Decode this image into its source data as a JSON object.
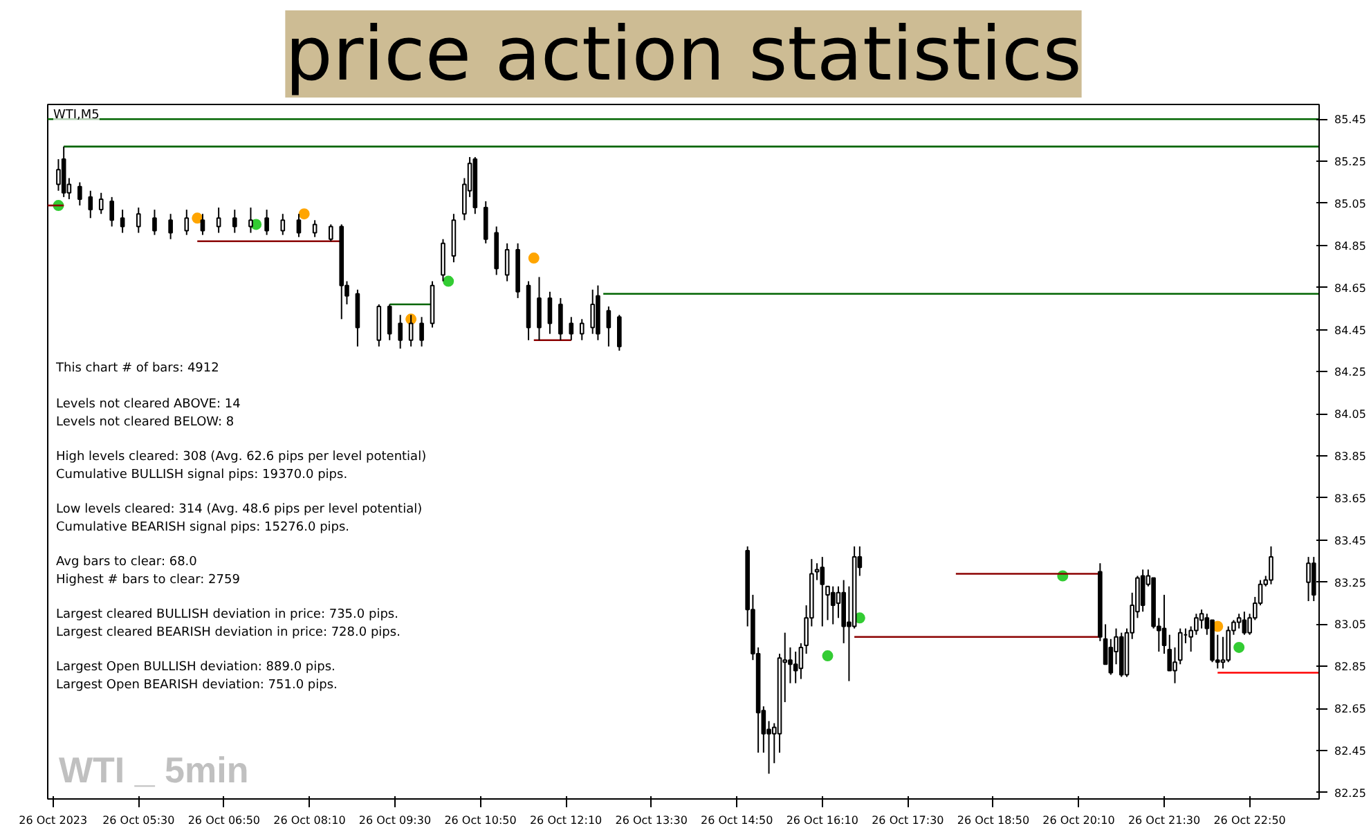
{
  "chart_data": {
    "type": "candlestick",
    "title": "price action statistics",
    "subtitle": "WTI,M5",
    "color": "#000000",
    "annotations": [
      "This chart # of bars: 4912",
      "Levels not cleared ABOVE: 14\nLevels not cleared BELOW: 8",
      "High levels cleared: 308   (Avg. 62.6 pips per level potential)\nCumulative BULLISH signal pips: 19370.0 pips.",
      "Low levels cleared: 314   (Avg. 48.6 pips per level potential)\nCumulative BEARISH signal pips: 15276.0 pips.",
      "Avg bars to clear: 68.0\nHighest # bars to clear: 2759",
      "Largest cleared BULLISH deviation in price: 735.0 pips.\nLargest cleared BEARISH deviation in price: 728.0 pips.",
      "Largest Open BULLISH deviation: 889.0 pips.\nLargest Open BEARISH deviation: 751.0 pips.",
      "WTI _ 5min"
    ],
    "xlim": [
      "2023-10-26T04:05",
      "2023-10-26T23:55"
    ],
    "ylim": [
      82.22,
      85.52
    ],
    "yticks": [
      85.45,
      85.25,
      85.05,
      84.85,
      84.65,
      84.45,
      84.25,
      84.05,
      83.85,
      83.65,
      83.45,
      83.25,
      83.05,
      82.85,
      82.65,
      82.45,
      82.25
    ],
    "xticks": [
      {
        "value": "2023-10-26T04:10",
        "label": "26 Oct 2023"
      },
      {
        "value": "2023-10-26T05:30",
        "label": "26 Oct 05:30"
      },
      {
        "value": "2023-10-26T06:50",
        "label": "26 Oct 06:50"
      },
      {
        "value": "2023-10-26T08:10",
        "label": "26 Oct 08:10"
      },
      {
        "value": "2023-10-26T09:30",
        "label": "26 Oct 09:30"
      },
      {
        "value": "2023-10-26T10:50",
        "label": "26 Oct 10:50"
      },
      {
        "value": "2023-10-26T12:10",
        "label": "26 Oct 12:10"
      },
      {
        "value": "2023-10-26T13:30",
        "label": "26 Oct 13:30"
      },
      {
        "value": "2023-10-26T14:50",
        "label": "26 Oct 14:50"
      },
      {
        "value": "2023-10-26T16:10",
        "label": "26 Oct 16:10"
      },
      {
        "value": "2023-10-26T17:30",
        "label": "26 Oct 17:30"
      },
      {
        "value": "2023-10-26T18:50",
        "label": "26 Oct 18:50"
      },
      {
        "value": "2023-10-26T20:10",
        "label": "26 Oct 20:10"
      },
      {
        "value": "2023-10-26T21:30",
        "label": "26 Oct 21:30"
      },
      {
        "value": "2023-10-26T22:50",
        "label": "26 Oct 22:50"
      }
    ],
    "x": [
      "2023-10-26T04:15",
      "2023-10-26T04:20",
      "2023-10-26T04:25",
      "2023-10-26T04:35",
      "2023-10-26T04:45",
      "2023-10-26T04:55",
      "2023-10-26T05:05",
      "2023-10-26T05:15",
      "2023-10-26T05:30",
      "2023-10-26T05:45",
      "2023-10-26T06:00",
      "2023-10-26T06:15",
      "2023-10-26T06:30",
      "2023-10-26T06:45",
      "2023-10-26T07:00",
      "2023-10-26T07:15",
      "2023-10-26T07:30",
      "2023-10-26T07:45",
      "2023-10-26T08:00",
      "2023-10-26T08:15",
      "2023-10-26T08:30",
      "2023-10-26T08:40",
      "2023-10-26T08:45",
      "2023-10-26T08:55",
      "2023-10-26T09:15",
      "2023-10-26T09:25",
      "2023-10-26T09:35",
      "2023-10-26T09:45",
      "2023-10-26T09:55",
      "2023-10-26T10:05",
      "2023-10-26T10:15",
      "2023-10-26T10:25",
      "2023-10-26T10:35",
      "2023-10-26T10:40",
      "2023-10-26T10:45",
      "2023-10-26T10:55",
      "2023-10-26T11:05",
      "2023-10-26T11:15",
      "2023-10-26T11:25",
      "2023-10-26T11:35",
      "2023-10-26T11:45",
      "2023-10-26T11:55",
      "2023-10-26T12:05",
      "2023-10-26T12:15",
      "2023-10-26T12:25",
      "2023-10-26T12:35",
      "2023-10-26T12:40",
      "2023-10-26T12:50",
      "2023-10-26T13:00",
      "2023-10-26T15:00",
      "2023-10-26T15:05",
      "2023-10-26T15:10",
      "2023-10-26T15:15",
      "2023-10-26T15:20",
      "2023-10-26T15:25",
      "2023-10-26T15:30",
      "2023-10-26T15:35",
      "2023-10-26T15:40",
      "2023-10-26T15:45",
      "2023-10-26T15:50",
      "2023-10-26T15:55",
      "2023-10-26T16:00",
      "2023-10-26T16:05",
      "2023-10-26T16:10",
      "2023-10-26T16:15",
      "2023-10-26T16:20",
      "2023-10-26T16:25",
      "2023-10-26T16:30",
      "2023-10-26T16:35",
      "2023-10-26T16:40",
      "2023-10-26T16:45",
      "2023-10-26T20:30",
      "2023-10-26T20:35",
      "2023-10-26T20:40",
      "2023-10-26T20:45",
      "2023-10-26T20:50",
      "2023-10-26T20:55",
      "2023-10-26T21:00",
      "2023-10-26T21:05",
      "2023-10-26T21:10",
      "2023-10-26T21:15",
      "2023-10-26T21:20",
      "2023-10-26T21:25",
      "2023-10-26T21:30",
      "2023-10-26T21:35",
      "2023-10-26T21:40",
      "2023-10-26T21:45",
      "2023-10-26T21:50",
      "2023-10-26T21:55",
      "2023-10-26T22:00",
      "2023-10-26T22:05",
      "2023-10-26T22:10",
      "2023-10-26T22:15",
      "2023-10-26T22:20",
      "2023-10-26T22:25",
      "2023-10-26T22:30",
      "2023-10-26T22:35",
      "2023-10-26T22:40",
      "2023-10-26T22:45",
      "2023-10-26T22:50",
      "2023-10-26T22:55",
      "2023-10-26T23:00",
      "2023-10-26T23:05",
      "2023-10-26T23:10",
      "2023-10-26T23:45",
      "2023-10-26T23:50"
    ],
    "ohlc": [
      [
        85.14,
        85.26,
        85.11,
        85.21
      ],
      [
        85.26,
        85.32,
        85.08,
        85.1
      ],
      [
        85.1,
        85.17,
        85.07,
        85.14
      ],
      [
        85.13,
        85.15,
        85.04,
        85.07
      ],
      [
        85.08,
        85.11,
        84.98,
        85.02
      ],
      [
        85.02,
        85.1,
        85.0,
        85.07
      ],
      [
        85.06,
        85.08,
        84.94,
        84.97
      ],
      [
        84.98,
        85.02,
        84.91,
        84.94
      ],
      [
        84.94,
        85.03,
        84.91,
        85.0
      ],
      [
        84.98,
        85.02,
        84.9,
        84.92
      ],
      [
        84.97,
        85.0,
        84.88,
        84.91
      ],
      [
        84.92,
        85.02,
        84.9,
        84.98
      ],
      [
        84.97,
        85.0,
        84.9,
        84.92
      ],
      [
        84.94,
        85.03,
        84.91,
        84.98
      ],
      [
        84.98,
        85.02,
        84.91,
        84.94
      ],
      [
        84.94,
        85.03,
        84.91,
        84.97
      ],
      [
        84.98,
        85.02,
        84.9,
        84.92
      ],
      [
        84.92,
        85.0,
        84.9,
        84.97
      ],
      [
        84.97,
        85.0,
        84.89,
        84.91
      ],
      [
        84.91,
        84.97,
        84.89,
        84.95
      ],
      [
        84.88,
        84.95,
        84.87,
        84.94
      ],
      [
        84.94,
        84.95,
        84.5,
        84.66
      ],
      [
        84.66,
        84.68,
        84.57,
        84.61
      ],
      [
        84.62,
        84.64,
        84.37,
        84.46
      ],
      [
        84.4,
        84.57,
        84.37,
        84.56
      ],
      [
        84.56,
        84.57,
        84.4,
        84.43
      ],
      [
        84.48,
        84.52,
        84.36,
        84.4
      ],
      [
        84.4,
        84.52,
        84.37,
        84.48
      ],
      [
        84.48,
        84.51,
        84.37,
        84.4
      ],
      [
        84.48,
        84.68,
        84.46,
        84.66
      ],
      [
        84.71,
        84.88,
        84.68,
        84.86
      ],
      [
        84.8,
        85.0,
        84.77,
        84.97
      ],
      [
        85.0,
        85.17,
        84.97,
        85.14
      ],
      [
        85.11,
        85.27,
        85.08,
        85.24
      ],
      [
        85.26,
        85.27,
        85.0,
        85.03
      ],
      [
        85.03,
        85.06,
        84.86,
        84.88
      ],
      [
        84.91,
        84.94,
        84.71,
        84.74
      ],
      [
        84.71,
        84.86,
        84.68,
        84.83
      ],
      [
        84.83,
        84.86,
        84.6,
        84.63
      ],
      [
        84.66,
        84.68,
        84.4,
        84.46
      ],
      [
        84.6,
        84.7,
        84.4,
        84.46
      ],
      [
        84.6,
        84.63,
        84.43,
        84.48
      ],
      [
        84.57,
        84.6,
        84.4,
        84.43
      ],
      [
        84.48,
        84.51,
        84.4,
        84.43
      ],
      [
        84.43,
        84.5,
        84.4,
        84.48
      ],
      [
        84.46,
        84.64,
        84.43,
        84.57
      ],
      [
        84.61,
        84.66,
        84.4,
        84.43
      ],
      [
        84.54,
        84.56,
        84.37,
        84.46
      ],
      [
        84.51,
        84.52,
        84.35,
        84.37
      ],
      [
        83.4,
        83.42,
        83.04,
        83.12
      ],
      [
        83.12,
        83.19,
        82.88,
        82.91
      ],
      [
        82.91,
        82.94,
        82.44,
        82.63
      ],
      [
        82.64,
        82.66,
        82.44,
        82.53
      ],
      [
        82.55,
        82.59,
        82.34,
        82.53
      ],
      [
        82.53,
        82.58,
        82.39,
        82.56
      ],
      [
        82.53,
        82.91,
        82.44,
        82.89
      ],
      [
        82.87,
        83.01,
        82.68,
        82.88
      ],
      [
        82.88,
        82.94,
        82.77,
        82.86
      ],
      [
        82.86,
        82.92,
        82.77,
        82.83
      ],
      [
        82.84,
        82.96,
        82.79,
        82.94
      ],
      [
        82.95,
        83.14,
        82.91,
        83.08
      ],
      [
        83.08,
        83.36,
        83.04,
        83.29
      ],
      [
        83.3,
        83.34,
        83.26,
        83.31
      ],
      [
        83.32,
        83.37,
        83.04,
        83.24
      ],
      [
        83.19,
        83.23,
        83.07,
        83.23
      ],
      [
        83.2,
        83.23,
        83.05,
        83.14
      ],
      [
        83.15,
        83.23,
        83.08,
        83.2
      ],
      [
        83.2,
        83.26,
        82.96,
        83.04
      ],
      [
        83.06,
        83.23,
        82.78,
        83.04
      ],
      [
        83.04,
        83.42,
        83.03,
        83.37
      ],
      [
        83.37,
        83.42,
        83.28,
        83.32
      ],
      [
        83.3,
        83.34,
        82.97,
        82.99
      ],
      [
        82.98,
        83.05,
        82.86,
        82.86
      ],
      [
        82.94,
        82.98,
        82.81,
        82.82
      ],
      [
        82.92,
        83.03,
        82.86,
        82.99
      ],
      [
        82.99,
        83.01,
        82.8,
        82.81
      ],
      [
        82.81,
        83.03,
        82.8,
        83.01
      ],
      [
        83.01,
        83.2,
        82.98,
        83.14
      ],
      [
        83.11,
        83.28,
        83.08,
        83.27
      ],
      [
        83.28,
        83.31,
        83.11,
        83.14
      ],
      [
        83.24,
        83.31,
        83.23,
        83.28
      ],
      [
        83.27,
        83.27,
        83.03,
        83.04
      ],
      [
        83.04,
        83.08,
        82.92,
        83.02
      ],
      [
        83.03,
        83.19,
        82.91,
        82.95
      ],
      [
        82.93,
        83.0,
        82.83,
        82.83
      ],
      [
        82.83,
        82.94,
        82.77,
        82.87
      ],
      [
        82.88,
        83.03,
        82.86,
        83.01
      ],
      [
        83.0,
        83.03,
        82.96,
        83.0
      ],
      [
        82.99,
        83.04,
        82.92,
        83.02
      ],
      [
        83.02,
        83.1,
        83.0,
        83.08
      ],
      [
        83.07,
        83.12,
        83.03,
        83.1
      ],
      [
        83.08,
        83.1,
        83.0,
        83.03
      ],
      [
        83.07,
        83.07,
        82.87,
        82.88
      ],
      [
        82.88,
        83.0,
        82.84,
        82.87
      ],
      [
        82.87,
        82.99,
        82.84,
        82.88
      ],
      [
        82.88,
        83.04,
        82.87,
        83.02
      ],
      [
        83.02,
        83.07,
        83.0,
        83.06
      ],
      [
        83.06,
        83.1,
        83.03,
        83.08
      ],
      [
        83.07,
        83.11,
        83.0,
        83.01
      ],
      [
        83.01,
        83.1,
        83.0,
        83.08
      ],
      [
        83.08,
        83.18,
        83.07,
        83.15
      ],
      [
        83.15,
        83.26,
        83.14,
        83.24
      ],
      [
        83.24,
        83.28,
        83.23,
        83.26
      ],
      [
        83.26,
        83.42,
        83.24,
        83.37
      ],
      [
        83.25,
        83.37,
        83.16,
        83.34
      ],
      [
        83.34,
        83.37,
        83.16,
        83.19
      ]
    ],
    "series": [
      {
        "type": "line",
        "color": "#006400",
        "x": [
          "2023-10-26T04:05",
          "2023-10-26T23:55"
        ],
        "values": [
          85.45,
          85.45
        ]
      },
      {
        "type": "line",
        "color": "#006400",
        "x": [
          "2023-10-26T04:20",
          "2023-10-26T23:55"
        ],
        "values": [
          85.32,
          85.32
        ]
      },
      {
        "type": "line",
        "color": "#006400",
        "x": [
          "2023-10-26T12:45",
          "2023-10-26T23:55"
        ],
        "values": [
          84.62,
          84.62
        ]
      },
      {
        "type": "line",
        "color": "#006400",
        "x": [
          "2023-10-26T09:25",
          "2023-10-26T10:05"
        ],
        "values": [
          84.57,
          84.57
        ]
      },
      {
        "type": "line",
        "color": "#8b0000",
        "x": [
          "2023-10-26T04:05",
          "2023-10-26T04:20"
        ],
        "values": [
          85.04,
          85.04
        ]
      },
      {
        "type": "line",
        "color": "#8b0000",
        "x": [
          "2023-10-26T06:25",
          "2023-10-26T08:40"
        ],
        "values": [
          84.87,
          84.87
        ]
      },
      {
        "type": "line",
        "color": "#8b0000",
        "x": [
          "2023-10-26T11:40",
          "2023-10-26T12:15"
        ],
        "values": [
          84.4,
          84.4
        ]
      },
      {
        "type": "line",
        "color": "#8b0000",
        "x": [
          "2023-10-26T18:15",
          "2023-10-26T20:30"
        ],
        "values": [
          83.29,
          83.29
        ]
      },
      {
        "type": "line",
        "color": "#8b0000",
        "x": [
          "2023-10-26T16:40",
          "2023-10-26T20:30"
        ],
        "values": [
          82.99,
          82.99
        ]
      },
      {
        "type": "line",
        "color": "#ff0000",
        "x": [
          "2023-10-26T22:20",
          "2023-10-26T23:55"
        ],
        "values": [
          82.82,
          82.82
        ]
      },
      {
        "type": "scatter",
        "marker": "circle",
        "color": "#33cc33",
        "x": [
          "2023-10-26T04:15",
          "2023-10-26T07:20",
          "2023-10-26T10:20",
          "2023-10-26T16:15",
          "2023-10-26T16:45",
          "2023-10-26T19:55",
          "2023-10-26T22:40"
        ],
        "values": [
          85.04,
          84.95,
          84.68,
          82.9,
          83.08,
          83.28,
          82.94
        ]
      },
      {
        "type": "scatter",
        "marker": "circle",
        "color": "#ffa500",
        "x": [
          "2023-10-26T06:25",
          "2023-10-26T08:05",
          "2023-10-26T09:45",
          "2023-10-26T11:40",
          "2023-10-26T22:20"
        ],
        "values": [
          84.98,
          85.0,
          84.5,
          84.79,
          83.04
        ]
      }
    ]
  }
}
